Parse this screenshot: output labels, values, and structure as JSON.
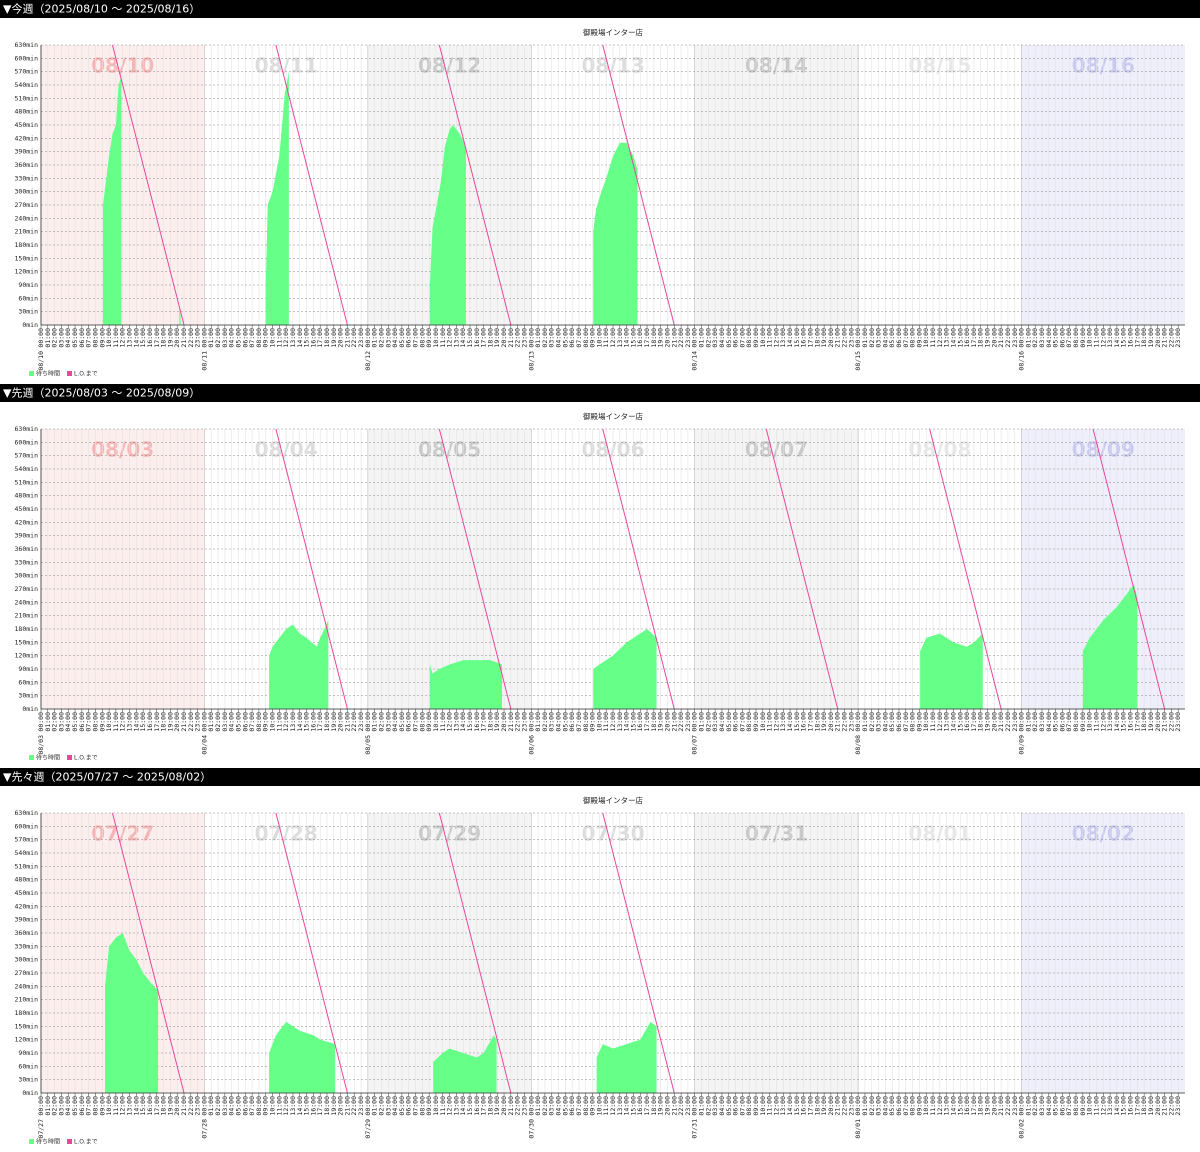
{
  "headings": [
    "▼今週（2025/08/10 ～ 2025/08/16）",
    "▼先週（2025/08/03 ～ 2025/08/09）",
    "▼先々週（2025/07/27 ～ 2025/08/02）"
  ],
  "chart_data": [
    {
      "type": "area",
      "title": "御殿場インター店",
      "categories": [
        "08/10",
        "08/11",
        "08/12",
        "08/13",
        "08/14",
        "08/15",
        "08/16"
      ],
      "hour_labels": [
        "00:00",
        "01:00",
        "02:00",
        "03:00",
        "04:00",
        "05:00",
        "06:00",
        "07:00",
        "08:00",
        "09:00",
        "10:00",
        "11:00",
        "12:00",
        "13:00",
        "14:00",
        "15:00",
        "16:00",
        "17:00",
        "18:00",
        "19:00",
        "20:00",
        "21:00",
        "22:00",
        "23:00"
      ],
      "day_colors": [
        "#fdeeee",
        "#ffffff",
        "#f4f4f4",
        "#ffffff",
        "#f4f4f4",
        "#ffffff",
        "#efeffc"
      ],
      "day_label_colors": [
        "#f5b5b5",
        "#dcdcdc",
        "#c8c8c8",
        "#dcdcdc",
        "#c8c8c8",
        "#e8e8e8",
        "#c8c8f0"
      ],
      "xlim": [
        0,
        168
      ],
      "ylim": [
        0,
        630
      ],
      "grid": true,
      "yticks": [
        {
          "value": 0,
          "label": "0min"
        },
        {
          "value": 30,
          "label": "30min"
        },
        {
          "value": 60,
          "label": "60min"
        },
        {
          "value": 90,
          "label": "90min"
        },
        {
          "value": 120,
          "label": "120min"
        },
        {
          "value": 150,
          "label": "150min"
        },
        {
          "value": 180,
          "label": "180min"
        },
        {
          "value": 210,
          "label": "210min"
        },
        {
          "value": 240,
          "label": "240min"
        },
        {
          "value": 270,
          "label": "270min"
        },
        {
          "value": 300,
          "label": "300min"
        },
        {
          "value": 330,
          "label": "330min"
        },
        {
          "value": 360,
          "label": "360min"
        },
        {
          "value": 390,
          "label": "390min"
        },
        {
          "value": 420,
          "label": "420min"
        },
        {
          "value": 450,
          "label": "450min"
        },
        {
          "value": 480,
          "label": "480min"
        },
        {
          "value": 510,
          "label": "510min"
        },
        {
          "value": 540,
          "label": "540min"
        },
        {
          "value": 570,
          "label": "570min"
        },
        {
          "value": 600,
          "label": "600min"
        },
        {
          "value": 630,
          "label": "630min"
        }
      ],
      "series": [
        {
          "name": "待ち時間",
          "type": "area",
          "color": "#66ff88",
          "x": [
            9.1,
            9.5,
            10,
            10.5,
            11,
            11.4,
            11.8,
            null,
            20.3,
            20.5,
            null,
            33.0,
            33.3,
            34,
            35,
            35.8,
            36.4,
            null,
            57.1,
            57.5,
            58,
            58.7,
            59.3,
            60,
            60.5,
            61.5,
            62.4,
            null,
            81.1,
            81.5,
            82.3,
            83,
            84,
            85,
            86,
            87,
            87.6
          ],
          "values": [
            270,
            320,
            380,
            430,
            450,
            540,
            560,
            null,
            40,
            20,
            null,
            90,
            270,
            300,
            380,
            520,
            570,
            null,
            90,
            220,
            260,
            320,
            400,
            440,
            450,
            430,
            400,
            null,
            210,
            260,
            300,
            330,
            380,
            410,
            410,
            380,
            350
          ]
        },
        {
          "name": "L.O.まで",
          "type": "line",
          "color": "#e8489a",
          "x": [
            10.5,
            21,
            null,
            34.5,
            45,
            null,
            58.5,
            69,
            null,
            82.5,
            93
          ],
          "values": [
            630,
            0,
            null,
            630,
            0,
            null,
            630,
            0,
            null,
            630,
            0
          ]
        }
      ]
    },
    {
      "type": "area",
      "title": "御殿場インター店",
      "categories": [
        "08/03",
        "08/04",
        "08/05",
        "08/06",
        "08/07",
        "08/08",
        "08/09"
      ],
      "hour_labels": [
        "00:00",
        "01:00",
        "02:00",
        "03:00",
        "04:00",
        "05:00",
        "06:00",
        "07:00",
        "08:00",
        "09:00",
        "10:00",
        "11:00",
        "12:00",
        "13:00",
        "14:00",
        "15:00",
        "16:00",
        "17:00",
        "18:00",
        "19:00",
        "20:00",
        "21:00",
        "22:00",
        "23:00"
      ],
      "day_colors": [
        "#fdeeee",
        "#ffffff",
        "#f4f4f4",
        "#ffffff",
        "#f4f4f4",
        "#ffffff",
        "#efeffc"
      ],
      "day_label_colors": [
        "#f5b5b5",
        "#dcdcdc",
        "#c8c8c8",
        "#dcdcdc",
        "#c8c8c8",
        "#e8e8e8",
        "#c8c8f0"
      ],
      "xlim": [
        0,
        168
      ],
      "ylim": [
        0,
        630
      ],
      "grid": true,
      "yticks": [
        {
          "value": 0,
          "label": "0min"
        },
        {
          "value": 30,
          "label": "30min"
        },
        {
          "value": 60,
          "label": "60min"
        },
        {
          "value": 90,
          "label": "90min"
        },
        {
          "value": 120,
          "label": "120min"
        },
        {
          "value": 150,
          "label": "150min"
        },
        {
          "value": 180,
          "label": "180min"
        },
        {
          "value": 210,
          "label": "210min"
        },
        {
          "value": 240,
          "label": "240min"
        },
        {
          "value": 270,
          "label": "270min"
        },
        {
          "value": 300,
          "label": "300min"
        },
        {
          "value": 330,
          "label": "330min"
        },
        {
          "value": 360,
          "label": "360min"
        },
        {
          "value": 390,
          "label": "390min"
        },
        {
          "value": 420,
          "label": "420min"
        },
        {
          "value": 450,
          "label": "450min"
        },
        {
          "value": 480,
          "label": "480min"
        },
        {
          "value": 510,
          "label": "510min"
        },
        {
          "value": 540,
          "label": "540min"
        },
        {
          "value": 570,
          "label": "570min"
        },
        {
          "value": 600,
          "label": "600min"
        },
        {
          "value": 630,
          "label": "630min"
        }
      ],
      "series": [
        {
          "name": "待ち時間",
          "type": "area",
          "color": "#66ff88",
          "x": [
            33.5,
            34,
            35,
            36,
            37,
            38,
            39,
            40.5,
            41,
            42.2,
            null,
            57.1,
            57.5,
            58.5,
            60,
            62,
            64,
            66,
            67.7,
            null,
            81.1,
            82,
            84,
            86,
            88,
            89,
            90.4,
            null,
            129.1,
            130,
            132,
            134,
            136,
            137,
            138.3,
            null,
            153,
            154,
            156,
            158,
            159.5,
            160.5,
            161
          ],
          "values": [
            120,
            140,
            160,
            180,
            190,
            170,
            160,
            140,
            160,
            200,
            null,
            100,
            80,
            90,
            100,
            110,
            110,
            110,
            100,
            null,
            90,
            100,
            120,
            150,
            170,
            180,
            160,
            null,
            130,
            160,
            170,
            150,
            140,
            150,
            170,
            null,
            130,
            160,
            200,
            230,
            260,
            280,
            250
          ]
        },
        {
          "name": "L.O.まで",
          "type": "line",
          "color": "#e8489a",
          "x": [
            34.5,
            45,
            null,
            58.5,
            69,
            null,
            82.5,
            93,
            null,
            106.5,
            117,
            null,
            130.5,
            141,
            null,
            154.5,
            165
          ],
          "values": [
            630,
            0,
            null,
            630,
            0,
            null,
            630,
            0,
            null,
            630,
            0,
            null,
            630,
            0,
            null,
            630,
            0
          ]
        }
      ]
    },
    {
      "type": "area",
      "title": "御殿場インター店",
      "categories": [
        "07/27",
        "07/28",
        "07/29",
        "07/30",
        "07/31",
        "08/01",
        "08/02"
      ],
      "hour_labels": [
        "00:00",
        "01:00",
        "02:00",
        "03:00",
        "04:00",
        "05:00",
        "06:00",
        "07:00",
        "08:00",
        "09:00",
        "10:00",
        "11:00",
        "12:00",
        "13:00",
        "14:00",
        "15:00",
        "16:00",
        "17:00",
        "18:00",
        "19:00",
        "20:00",
        "21:00",
        "22:00",
        "23:00"
      ],
      "day_colors": [
        "#fdeeee",
        "#ffffff",
        "#f4f4f4",
        "#ffffff",
        "#f4f4f4",
        "#ffffff",
        "#efeffc"
      ],
      "day_label_colors": [
        "#f5b5b5",
        "#dcdcdc",
        "#c8c8c8",
        "#dcdcdc",
        "#c8c8c8",
        "#e8e8e8",
        "#c8c8f0"
      ],
      "xlim": [
        0,
        168
      ],
      "ylim": [
        0,
        630
      ],
      "grid": true,
      "yticks": [
        {
          "value": 0,
          "label": "0min"
        },
        {
          "value": 30,
          "label": "30min"
        },
        {
          "value": 60,
          "label": "60min"
        },
        {
          "value": 90,
          "label": "90min"
        },
        {
          "value": 120,
          "label": "120min"
        },
        {
          "value": 150,
          "label": "150min"
        },
        {
          "value": 180,
          "label": "180min"
        },
        {
          "value": 210,
          "label": "210min"
        },
        {
          "value": 240,
          "label": "240min"
        },
        {
          "value": 270,
          "label": "270min"
        },
        {
          "value": 300,
          "label": "300min"
        },
        {
          "value": 330,
          "label": "330min"
        },
        {
          "value": 360,
          "label": "360min"
        },
        {
          "value": 390,
          "label": "390min"
        },
        {
          "value": 420,
          "label": "420min"
        },
        {
          "value": 450,
          "label": "450min"
        },
        {
          "value": 480,
          "label": "480min"
        },
        {
          "value": 510,
          "label": "510min"
        },
        {
          "value": 540,
          "label": "540min"
        },
        {
          "value": 570,
          "label": "570min"
        },
        {
          "value": 600,
          "label": "600min"
        },
        {
          "value": 630,
          "label": "630min"
        }
      ],
      "series": [
        {
          "name": "待ち時間",
          "type": "area",
          "color": "#66ff88",
          "x": [
            9.4,
            10,
            11,
            12,
            13,
            14,
            15,
            16,
            17.2,
            null,
            33.5,
            34.5,
            36,
            38,
            40,
            41,
            43.2,
            null,
            57.6,
            59,
            60,
            62,
            64,
            65,
            66.5,
            66.9,
            null,
            81.6,
            82.5,
            84,
            86,
            88,
            89.5,
            90.4
          ],
          "values": [
            240,
            330,
            350,
            360,
            320,
            300,
            270,
            250,
            230,
            null,
            90,
            130,
            160,
            140,
            130,
            120,
            110,
            null,
            70,
            90,
            100,
            90,
            80,
            90,
            130,
            120,
            null,
            80,
            110,
            100,
            110,
            120,
            160,
            150
          ]
        },
        {
          "name": "L.O.まで",
          "type": "line",
          "color": "#e8489a",
          "x": [
            10.5,
            21,
            null,
            34.5,
            45,
            null,
            58.5,
            69,
            null,
            82.5,
            93
          ],
          "values": [
            630,
            0,
            null,
            630,
            0,
            null,
            630,
            0,
            null,
            630,
            0
          ]
        }
      ]
    }
  ]
}
